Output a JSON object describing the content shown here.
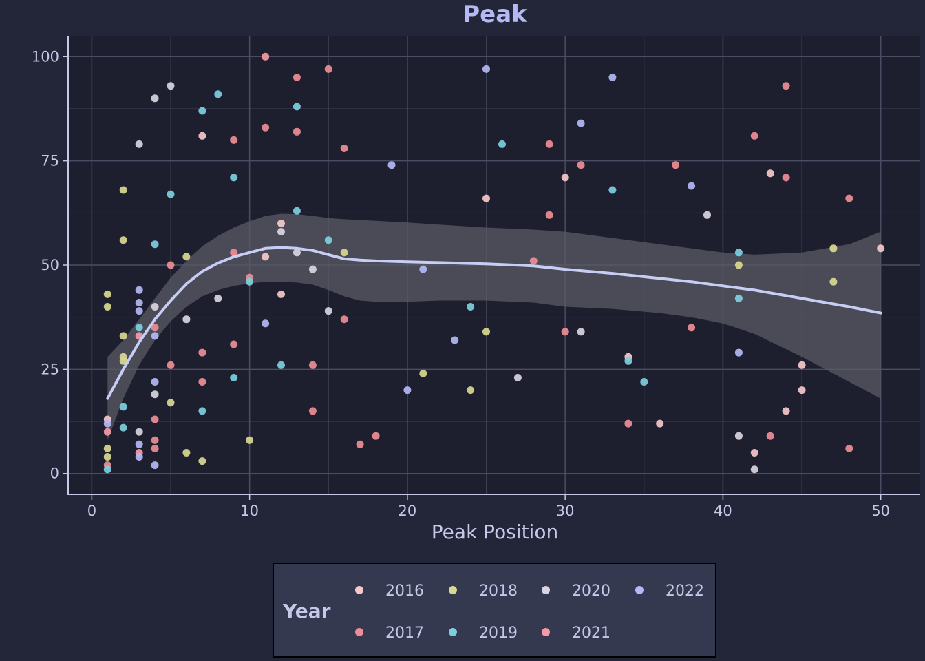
{
  "chart_data": {
    "type": "scatter",
    "title": "Peak",
    "xlabel": "Peak Position",
    "ylabel": "",
    "xlim": [
      -1.5,
      52.5
    ],
    "ylim": [
      -5,
      105
    ],
    "xticks": [
      0,
      10,
      20,
      30,
      40,
      50
    ],
    "yticks": [
      0,
      25,
      50,
      75,
      100
    ],
    "grid": true,
    "legend": {
      "title": "Year",
      "placement": "bottom"
    },
    "series": [
      {
        "name": "2016",
        "color": "#f5c9c9",
        "points": [
          [
            1,
            13
          ],
          [
            7,
            81
          ],
          [
            11,
            52
          ],
          [
            12,
            43
          ],
          [
            12,
            60
          ],
          [
            25,
            66
          ],
          [
            30,
            71
          ],
          [
            34,
            28
          ],
          [
            36,
            12
          ],
          [
            42,
            5
          ],
          [
            43,
            72
          ],
          [
            44,
            15
          ],
          [
            45,
            26
          ],
          [
            45,
            20
          ],
          [
            50,
            54
          ]
        ]
      },
      {
        "name": "2017",
        "color": "#ee8d95",
        "points": [
          [
            1,
            2
          ],
          [
            4,
            35
          ],
          [
            4,
            13
          ],
          [
            4,
            8
          ],
          [
            4,
            6
          ],
          [
            5,
            50
          ],
          [
            5,
            26
          ],
          [
            7,
            29
          ],
          [
            7,
            22
          ],
          [
            9,
            80
          ],
          [
            9,
            53
          ],
          [
            9,
            31
          ],
          [
            10,
            47
          ],
          [
            11,
            83
          ],
          [
            13,
            95
          ],
          [
            13,
            82
          ],
          [
            14,
            26
          ],
          [
            14,
            15
          ],
          [
            15,
            97
          ],
          [
            16,
            78
          ],
          [
            16,
            37
          ],
          [
            17,
            7
          ],
          [
            18,
            9
          ],
          [
            28,
            51
          ],
          [
            29,
            79
          ],
          [
            29,
            62
          ],
          [
            30,
            34
          ],
          [
            31,
            74
          ],
          [
            34,
            12
          ],
          [
            37,
            74
          ],
          [
            38,
            35
          ],
          [
            42,
            81
          ],
          [
            43,
            9
          ],
          [
            44,
            93
          ],
          [
            44,
            71
          ],
          [
            48,
            66
          ],
          [
            48,
            6
          ]
        ]
      },
      {
        "name": "2018",
        "color": "#d8d890",
        "points": [
          [
            1,
            43
          ],
          [
            1,
            40
          ],
          [
            1,
            6
          ],
          [
            1,
            4
          ],
          [
            2,
            68
          ],
          [
            2,
            56
          ],
          [
            2,
            33
          ],
          [
            2,
            28
          ],
          [
            2,
            27
          ],
          [
            5,
            17
          ],
          [
            6,
            52
          ],
          [
            6,
            5
          ],
          [
            7,
            3
          ],
          [
            10,
            8
          ],
          [
            16,
            53
          ],
          [
            21,
            24
          ],
          [
            24,
            20
          ],
          [
            25,
            34
          ],
          [
            41,
            50
          ],
          [
            47,
            54
          ],
          [
            47,
            46
          ]
        ]
      },
      {
        "name": "2019",
        "color": "#7ccfe0",
        "points": [
          [
            1,
            1
          ],
          [
            2,
            16
          ],
          [
            2,
            11
          ],
          [
            3,
            35
          ],
          [
            4,
            55
          ],
          [
            5,
            67
          ],
          [
            7,
            87
          ],
          [
            7,
            15
          ],
          [
            8,
            91
          ],
          [
            9,
            71
          ],
          [
            9,
            23
          ],
          [
            10,
            46
          ],
          [
            12,
            26
          ],
          [
            13,
            88
          ],
          [
            13,
            63
          ],
          [
            15,
            56
          ],
          [
            24,
            40
          ],
          [
            26,
            79
          ],
          [
            33,
            68
          ],
          [
            34,
            27
          ],
          [
            35,
            22
          ],
          [
            41,
            53
          ],
          [
            41,
            42
          ]
        ]
      },
      {
        "name": "2020",
        "color": "#d8d4e0",
        "points": [
          [
            3,
            79
          ],
          [
            3,
            10
          ],
          [
            4,
            90
          ],
          [
            4,
            40
          ],
          [
            4,
            19
          ],
          [
            5,
            93
          ],
          [
            6,
            37
          ],
          [
            8,
            42
          ],
          [
            12,
            58
          ],
          [
            13,
            53
          ],
          [
            14,
            49
          ],
          [
            15,
            39
          ],
          [
            27,
            23
          ],
          [
            31,
            34
          ],
          [
            39,
            62
          ],
          [
            41,
            9
          ],
          [
            42,
            1
          ]
        ]
      },
      {
        "name": "2021",
        "color": "#f29aa6",
        "points": [
          [
            1,
            10
          ],
          [
            3,
            33
          ],
          [
            3,
            5
          ],
          [
            11,
            100
          ]
        ]
      },
      {
        "name": "2022",
        "color": "#b4b8f5",
        "points": [
          [
            1,
            12
          ],
          [
            3,
            44
          ],
          [
            3,
            41
          ],
          [
            3,
            39
          ],
          [
            3,
            7
          ],
          [
            3,
            4
          ],
          [
            4,
            33
          ],
          [
            4,
            22
          ],
          [
            4,
            2
          ],
          [
            11,
            36
          ],
          [
            19,
            74
          ],
          [
            20,
            20
          ],
          [
            21,
            49
          ],
          [
            23,
            32
          ],
          [
            25,
            97
          ],
          [
            31,
            84
          ],
          [
            33,
            95
          ],
          [
            38,
            69
          ],
          [
            41,
            29
          ]
        ]
      }
    ],
    "smooth": {
      "method": "loess",
      "color": "#c8cdf5",
      "x": [
        1,
        2,
        3,
        4,
        5,
        6,
        7,
        8,
        9,
        10,
        11,
        12,
        13,
        14,
        15,
        16,
        17,
        18,
        20,
        22,
        25,
        28,
        30,
        33,
        36,
        38,
        40,
        42,
        45,
        48,
        50
      ],
      "y": [
        18,
        25,
        31.5,
        37,
        41.5,
        45.5,
        48.5,
        50.5,
        52,
        53,
        54,
        54.2,
        54,
        53.5,
        52.5,
        51.5,
        51.2,
        51,
        50.8,
        50.6,
        50.3,
        49.8,
        49,
        48,
        46.8,
        46,
        45,
        44,
        42,
        40,
        38.5
      ],
      "upper": [
        28,
        32,
        37,
        42,
        47,
        51,
        54.5,
        57,
        59,
        60.5,
        61.8,
        62.3,
        62.2,
        61.8,
        61.3,
        61,
        60.8,
        60.6,
        60.2,
        59.7,
        59,
        58.5,
        58,
        56.5,
        55,
        54,
        53,
        52.5,
        53,
        55,
        58
      ],
      "lower": [
        8,
        18,
        26,
        32,
        36.5,
        40,
        42.5,
        44,
        45,
        45.6,
        46,
        46,
        45.8,
        45.3,
        44,
        42.5,
        41.5,
        41.2,
        41.2,
        41.5,
        41.5,
        41,
        40,
        39.5,
        38.5,
        37.5,
        36,
        33.5,
        28,
        22,
        18
      ]
    }
  }
}
